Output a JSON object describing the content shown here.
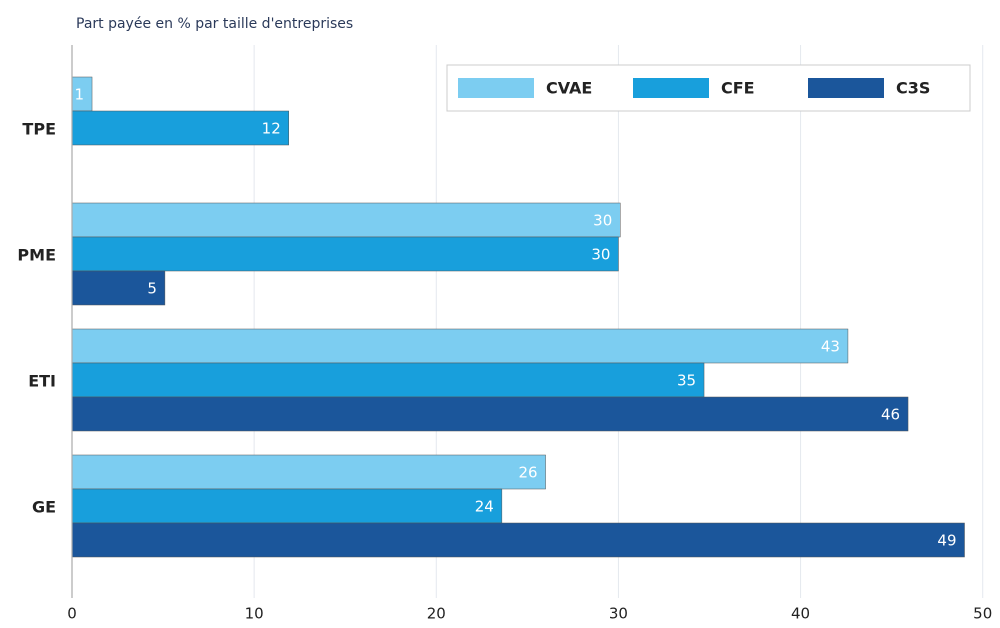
{
  "chart_data": {
    "type": "hbar",
    "title": "Part payée en % par taille d'entreprises",
    "categories": [
      "TPE",
      "PME",
      "ETI",
      "GE"
    ],
    "series": [
      {
        "name": "CVAE",
        "color": "#7ccdf1",
        "values": [
          1.1,
          30.1,
          42.6,
          26
        ],
        "value_labels": [
          "1",
          "30",
          "43",
          "26"
        ]
      },
      {
        "name": "CFE",
        "color": "#189fdc",
        "values": [
          11.9,
          30,
          34.7,
          23.6
        ],
        "value_labels": [
          "12",
          "30",
          "35",
          "24"
        ]
      },
      {
        "name": "C3S",
        "color": "#1b569b",
        "values": [
          null,
          5.1,
          45.9,
          49
        ],
        "value_labels": [
          null,
          "5",
          "46",
          "49"
        ]
      }
    ],
    "xlim": [
      0,
      50.4
    ],
    "xticks": [
      0,
      10,
      20,
      30,
      40,
      50
    ],
    "grid": true
  }
}
